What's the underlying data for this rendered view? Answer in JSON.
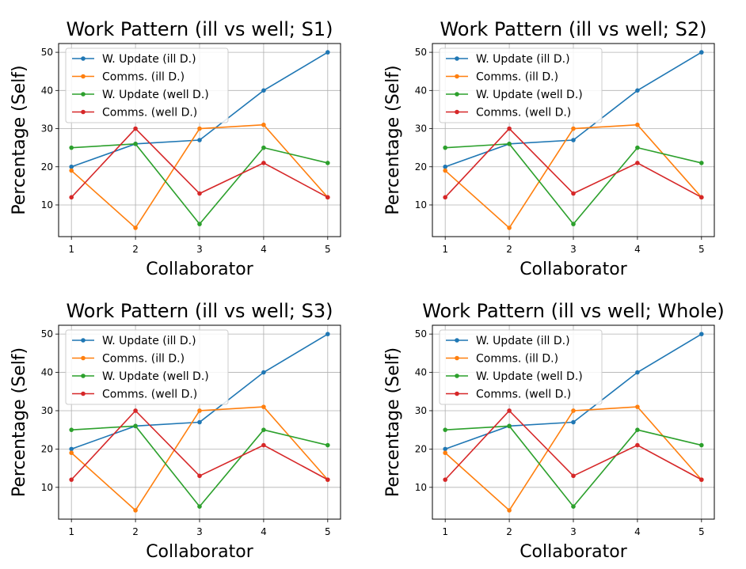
{
  "chart_data": [
    {
      "type": "line",
      "title": "Work Pattern (ill vs well; S1)",
      "xlabel": "Collaborator",
      "ylabel": "Percentage (Self)",
      "x": [
        1,
        2,
        3,
        4,
        5
      ],
      "xlim": [
        0.8,
        5.2
      ],
      "ylim": [
        1.7,
        52.3
      ],
      "yticks": [
        10,
        20,
        30,
        40,
        50
      ],
      "grid": true,
      "legend": "top-left",
      "series": [
        {
          "name": "W. Update (ill D.)",
          "color": "#1f77b4",
          "values": [
            20,
            26,
            27,
            40,
            50
          ]
        },
        {
          "name": "Comms. (ill D.)",
          "color": "#ff7f0e",
          "values": [
            19,
            4,
            30,
            31,
            12
          ]
        },
        {
          "name": "W. Update (well D.)",
          "color": "#2ca02c",
          "values": [
            25,
            26,
            5,
            25,
            21
          ]
        },
        {
          "name": "Comms. (well D.)",
          "color": "#d62728",
          "values": [
            12,
            30,
            13,
            21,
            12
          ]
        }
      ]
    },
    {
      "type": "line",
      "title": "Work Pattern (ill vs well; S2)",
      "xlabel": "Collaborator",
      "ylabel": "Percentage (Self)",
      "x": [
        1,
        2,
        3,
        4,
        5
      ],
      "xlim": [
        0.8,
        5.2
      ],
      "ylim": [
        1.7,
        52.3
      ],
      "yticks": [
        10,
        20,
        30,
        40,
        50
      ],
      "grid": true,
      "legend": "top-left",
      "series": [
        {
          "name": "W. Update (ill D.)",
          "color": "#1f77b4",
          "values": [
            20,
            26,
            27,
            40,
            50
          ]
        },
        {
          "name": "Comms. (ill D.)",
          "color": "#ff7f0e",
          "values": [
            19,
            4,
            30,
            31,
            12
          ]
        },
        {
          "name": "W. Update (well D.)",
          "color": "#2ca02c",
          "values": [
            25,
            26,
            5,
            25,
            21
          ]
        },
        {
          "name": "Comms. (well D.)",
          "color": "#d62728",
          "values": [
            12,
            30,
            13,
            21,
            12
          ]
        }
      ]
    },
    {
      "type": "line",
      "title": "Work Pattern (ill vs well; S3)",
      "xlabel": "Collaborator",
      "ylabel": "Percentage (Self)",
      "x": [
        1,
        2,
        3,
        4,
        5
      ],
      "xlim": [
        0.8,
        5.2
      ],
      "ylim": [
        1.7,
        52.3
      ],
      "yticks": [
        10,
        20,
        30,
        40,
        50
      ],
      "grid": true,
      "legend": "top-left",
      "series": [
        {
          "name": "W. Update (ill D.)",
          "color": "#1f77b4",
          "values": [
            20,
            26,
            27,
            40,
            50
          ]
        },
        {
          "name": "Comms. (ill D.)",
          "color": "#ff7f0e",
          "values": [
            19,
            4,
            30,
            31,
            12
          ]
        },
        {
          "name": "W. Update (well D.)",
          "color": "#2ca02c",
          "values": [
            25,
            26,
            5,
            25,
            21
          ]
        },
        {
          "name": "Comms. (well D.)",
          "color": "#d62728",
          "values": [
            12,
            30,
            13,
            21,
            12
          ]
        }
      ]
    },
    {
      "type": "line",
      "title": "Work Pattern (ill vs well; Whole)",
      "xlabel": "Collaborator",
      "ylabel": "Percentage (Self)",
      "x": [
        1,
        2,
        3,
        4,
        5
      ],
      "xlim": [
        0.8,
        5.2
      ],
      "ylim": [
        1.7,
        52.3
      ],
      "yticks": [
        10,
        20,
        30,
        40,
        50
      ],
      "grid": true,
      "legend": "top-left",
      "series": [
        {
          "name": "W. Update (ill D.)",
          "color": "#1f77b4",
          "values": [
            20,
            26,
            27,
            40,
            50
          ]
        },
        {
          "name": "Comms. (ill D.)",
          "color": "#ff7f0e",
          "values": [
            19,
            4,
            30,
            31,
            12
          ]
        },
        {
          "name": "W. Update (well D.)",
          "color": "#2ca02c",
          "values": [
            25,
            26,
            5,
            25,
            21
          ]
        },
        {
          "name": "Comms. (well D.)",
          "color": "#d62728",
          "values": [
            12,
            30,
            13,
            21,
            12
          ]
        }
      ]
    }
  ]
}
